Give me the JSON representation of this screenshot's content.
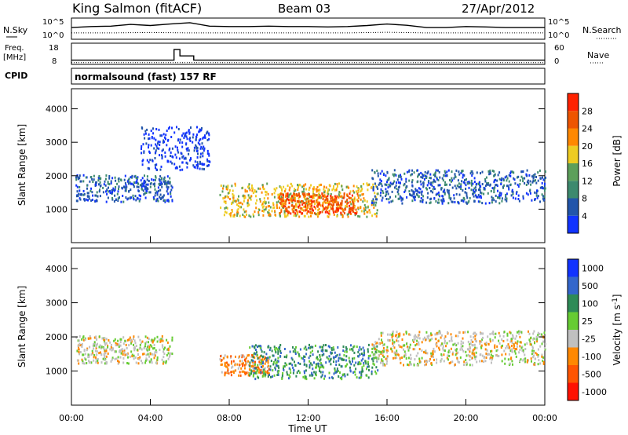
{
  "header": {
    "station": "King Salmon (fitACF)",
    "beam": "Beam 03",
    "date": "27/Apr/2012"
  },
  "noise_panel": {
    "left_label": "N.Sky",
    "right_label": "N.Search",
    "left_ticks": [
      "10^5",
      "10^0"
    ],
    "right_ticks": [
      "10^5",
      "10^0"
    ]
  },
  "freq_panel": {
    "left_label_1": "Freq.",
    "left_label_2": "[MHz]",
    "left_ticks": [
      "18",
      "8"
    ],
    "right_label": "Nave",
    "right_ticks": [
      "60",
      "0"
    ],
    "cpid_label": "CPID"
  },
  "cpid_text": "normalsound (fast) 157 RF",
  "chart_data": [
    {
      "type": "line",
      "title": "",
      "ylabel_left": "N.Sky",
      "ylabel_right": "N.Search",
      "xlim": [
        0,
        24
      ],
      "series": [
        {
          "name": "N.Sky",
          "x": [
            0,
            1,
            2,
            3,
            4,
            5,
            6,
            7,
            8,
            9,
            10,
            11,
            12,
            13,
            14,
            15,
            16,
            17,
            18,
            19,
            20,
            21,
            22,
            23,
            24
          ],
          "values": [
            0.55,
            0.6,
            0.62,
            0.7,
            0.65,
            0.72,
            0.78,
            0.62,
            0.6,
            0.6,
            0.62,
            0.6,
            0.6,
            0.58,
            0.6,
            0.65,
            0.72,
            0.66,
            0.55,
            0.55,
            0.6,
            0.58,
            0.55,
            0.55,
            0.55
          ]
        },
        {
          "name": "N.Search",
          "x": [
            0,
            2,
            4,
            6,
            8,
            10,
            12,
            14,
            16,
            18,
            20,
            22,
            24
          ],
          "values": [
            0.3,
            0.3,
            0.32,
            0.3,
            0.3,
            0.3,
            0.3,
            0.3,
            0.33,
            0.3,
            0.3,
            0.3,
            0.3
          ]
        }
      ]
    },
    {
      "type": "line",
      "ylabel_left": "Freq. [MHz]",
      "ylabel_right": "Nave",
      "ylim_left": [
        8,
        18
      ],
      "ylim_right": [
        0,
        60
      ],
      "series": [
        {
          "name": "Freq.",
          "x": [
            0,
            5.2,
            5.2,
            5.5,
            5.5,
            6.2,
            6.2,
            24
          ],
          "values": [
            10,
            10,
            15,
            15,
            12,
            12,
            10,
            10
          ]
        },
        {
          "name": "Nave",
          "x": [
            0,
            24
          ],
          "values": [
            5,
            5
          ]
        }
      ]
    },
    {
      "type": "heatmap",
      "title": "",
      "ylabel": "Slant Range [km]",
      "xlabel": "Time UT",
      "xlim": [
        0,
        24
      ],
      "ylim": [
        0,
        4600
      ],
      "x_ticks": [
        "00:00",
        "04:00",
        "08:00",
        "12:00",
        "16:00",
        "20:00",
        "00:00"
      ],
      "y_ticks": [
        "1000",
        "2000",
        "3000",
        "4000"
      ],
      "colorbar_label": "Power [dB]",
      "colorbar_ticks": [
        "4",
        "8",
        "12",
        "16",
        "20",
        "24",
        "28"
      ],
      "colors": [
        "#1133ff",
        "#2255aa",
        "#3d8a6e",
        "#5c9f5a",
        "#eecc22",
        "#ff8800",
        "#ee5500",
        "#ff2200"
      ],
      "scatter_regions": [
        {
          "t0": 0.2,
          "t1": 5.1,
          "r0": 1250,
          "r1": 2050,
          "level": 1
        },
        {
          "t0": 3.5,
          "t1": 7.0,
          "r0": 2200,
          "r1": 3500,
          "level": 0
        },
        {
          "t0": 7.5,
          "t1": 15.5,
          "r0": 800,
          "r1": 1800,
          "level": 4
        },
        {
          "t0": 10.5,
          "t1": 14.5,
          "r0": 900,
          "r1": 1500,
          "level": 6
        },
        {
          "t0": 15.2,
          "t1": 24,
          "r0": 1200,
          "r1": 2200,
          "level": 1
        }
      ]
    },
    {
      "type": "heatmap",
      "ylabel": "Slant Range [km]",
      "xlabel": "Time UT",
      "xlim": [
        0,
        24
      ],
      "ylim": [
        0,
        4600
      ],
      "x_ticks": [
        "00:00",
        "04:00",
        "08:00",
        "12:00",
        "16:00",
        "20:00",
        "00:00"
      ],
      "y_ticks": [
        "1000",
        "2000",
        "3000",
        "4000"
      ],
      "colorbar_label": "Velocity [m s^-1]",
      "colorbar_ticks": [
        "1000",
        "500",
        "100",
        "25",
        "-25",
        "-100",
        "-500",
        "-1000"
      ],
      "colors": [
        "#1133ff",
        "#3366cc",
        "#2e8b57",
        "#66cc33",
        "#c0c0c0",
        "#ff8800",
        "#ff5500",
        "#ff1100"
      ],
      "scatter_regions": [
        {
          "t0": 0.2,
          "t1": 5.1,
          "r0": 1250,
          "r1": 2050,
          "level": 4
        },
        {
          "t0": 7.5,
          "t1": 10.0,
          "r0": 900,
          "r1": 1500,
          "level": 5
        },
        {
          "t0": 9.0,
          "t1": 15.5,
          "r0": 800,
          "r1": 1800,
          "level": 2
        },
        {
          "t0": 15.2,
          "t1": 24,
          "r0": 1200,
          "r1": 2200,
          "level": 4
        }
      ]
    }
  ],
  "xlabel": "Time UT",
  "colorbar_power": {
    "label": "Power [dB]"
  },
  "colorbar_velocity": {
    "label": "Velocity [m s",
    "label_sup": "-1",
    "label_end": "]"
  }
}
